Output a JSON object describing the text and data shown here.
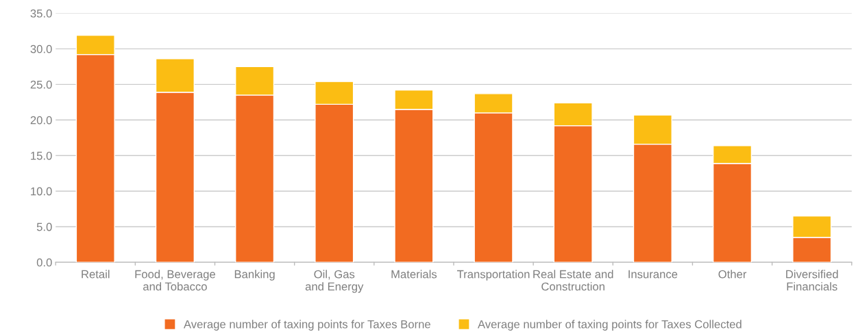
{
  "chart_data": {
    "type": "bar",
    "stacked": true,
    "categories": [
      "Retail",
      "Food, Beverage\nand Tobacco",
      "Banking",
      "Oil, Gas\nand Energy",
      "Materials",
      "Transportation",
      "Real Estate and\nConstruction",
      "Insurance",
      "Other",
      "Diversified\nFinancials"
    ],
    "series": [
      {
        "name": "Average number of taxing points for Taxes Borne",
        "color": "#f26b21",
        "values": [
          29.2,
          23.9,
          23.5,
          22.2,
          21.5,
          21.0,
          19.2,
          16.6,
          13.9,
          3.5
        ]
      },
      {
        "name": "Average number of taxing points for Taxes Collected",
        "color": "#fbbd13",
        "values": [
          2.7,
          4.7,
          4.0,
          3.2,
          2.7,
          2.7,
          3.2,
          4.1,
          2.5,
          3.0
        ]
      }
    ],
    "ylim": [
      0,
      35
    ],
    "yticks": [
      {
        "value": 0,
        "label": "0.0"
      },
      {
        "value": 5,
        "label": "5.0"
      },
      {
        "value": 10,
        "label": "10.0"
      },
      {
        "value": 15,
        "label": "15.0"
      },
      {
        "value": 20,
        "label": "20.0"
      },
      {
        "value": 25,
        "label": "25.0"
      },
      {
        "value": 30,
        "label": "30.0"
      },
      {
        "value": 35,
        "label": "35.0"
      }
    ],
    "grid": "y",
    "legend": "bottom"
  }
}
